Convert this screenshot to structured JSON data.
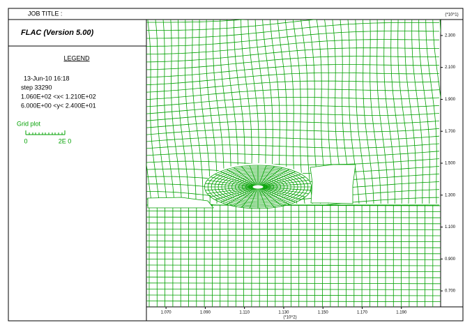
{
  "header": {
    "job_title": "JOB TITLE :",
    "program": "FLAC (Version 5.00)"
  },
  "legend": {
    "title": "LEGEND",
    "date": "13-Jun-10  16:18",
    "step": "step    33290",
    "x_range": "1.060E+02 <x<  1.210E+02",
    "y_range": "6.000E+00 <y<  2.400E+01",
    "plot_name": "Grid plot",
    "scale_start": "0",
    "scale_end": "2E  0"
  },
  "chart_data": {
    "type": "mesh",
    "color": "#00a000",
    "xlim": [
      1.06,
      1.21
    ],
    "ylim": [
      0.6,
      2.4
    ],
    "xticks": [
      {
        "value": 1.07,
        "label": "1.070"
      },
      {
        "value": 1.09,
        "label": "1.090"
      },
      {
        "value": 1.11,
        "label": "1.110"
      },
      {
        "value": 1.13,
        "label": "1.130"
      },
      {
        "value": 1.15,
        "label": "1.150"
      },
      {
        "value": 1.17,
        "label": "1.170"
      },
      {
        "value": 1.19,
        "label": "1.190"
      }
    ],
    "yticks": [
      {
        "value": 0.7,
        "label": "0.700"
      },
      {
        "value": 0.9,
        "label": "0.900"
      },
      {
        "value": 1.1,
        "label": "1.100"
      },
      {
        "value": 1.3,
        "label": "1.300"
      },
      {
        "value": 1.5,
        "label": "1.500"
      },
      {
        "value": 1.7,
        "label": "1.700"
      },
      {
        "value": 1.9,
        "label": "1.900"
      },
      {
        "value": 2.1,
        "label": "2.100"
      },
      {
        "value": 2.3,
        "label": "2.300"
      }
    ],
    "x_multiplier": "(*10^2)",
    "y_multiplier": "(*10^1)"
  }
}
